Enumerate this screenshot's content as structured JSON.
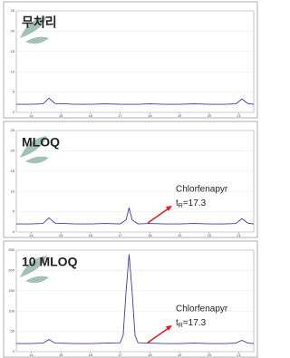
{
  "chart_data": [
    {
      "type": "line",
      "title": "무처리",
      "x": [
        13.5,
        14,
        14.4,
        14.6,
        14.8,
        15.5,
        16,
        16.5,
        17,
        17.2,
        17.3,
        17.4,
        17.6,
        18,
        18.5,
        19,
        19.5,
        20,
        20.5,
        20.9,
        21.1,
        21.3,
        21.5
      ],
      "series": [
        {
          "name": "Signal",
          "color": "#3b3bb0",
          "values": [
            2,
            2,
            2.1,
            3.5,
            2.2,
            2,
            2,
            2.1,
            2,
            2,
            2,
            2,
            2,
            2.1,
            2,
            2,
            2.1,
            2,
            2,
            2.1,
            3.3,
            2.2,
            2
          ]
        }
      ],
      "xlim": [
        13.5,
        21.5
      ],
      "xticks": [
        14,
        15,
        16,
        17,
        18,
        19,
        20,
        21
      ],
      "ylim": [
        0,
        25
      ],
      "yticks": [
        0,
        5,
        10,
        15,
        20,
        25
      ],
      "grid": true
    },
    {
      "type": "line",
      "title": "MLOQ",
      "x": [
        13.5,
        14,
        14.4,
        14.6,
        14.8,
        15.5,
        16,
        16.5,
        17,
        17.2,
        17.3,
        17.4,
        17.6,
        18,
        18.5,
        19,
        19.5,
        20,
        20.5,
        20.9,
        21.1,
        21.3,
        21.5
      ],
      "series": [
        {
          "name": "Signal",
          "color": "#3b3bb0",
          "values": [
            2,
            2,
            2.1,
            3.5,
            2.2,
            2,
            2,
            2.1,
            2,
            3,
            6,
            3,
            2,
            2.1,
            2,
            2,
            2.1,
            2,
            2,
            2.1,
            3.3,
            2.2,
            2
          ]
        }
      ],
      "xlim": [
        13.5,
        21.5
      ],
      "xticks": [
        14,
        15,
        16,
        17,
        18,
        19,
        20,
        21
      ],
      "ylim": [
        0,
        25
      ],
      "yticks": [
        0,
        5,
        10,
        15,
        20,
        25
      ],
      "grid": true,
      "annotation": "Chlorfenapyr",
      "retention": {
        "symbol": "t",
        "subscript": "R",
        "text": "=17.3"
      }
    },
    {
      "type": "line",
      "title": "10 MLOQ",
      "x": [
        13.5,
        14,
        14.4,
        14.6,
        14.8,
        15.5,
        16,
        16.5,
        17,
        17.1,
        17.2,
        17.3,
        17.4,
        17.5,
        17.6,
        18,
        18.5,
        19,
        19.5,
        20,
        20.5,
        20.9,
        21.1,
        21.3,
        21.5
      ],
      "series": [
        {
          "name": "Signal",
          "color": "#3b3bb0",
          "values": [
            20,
            20,
            21,
            30,
            21,
            20,
            20,
            21,
            22,
            40,
            150,
            240,
            150,
            40,
            22,
            21,
            20,
            20,
            21,
            20,
            20,
            21,
            28,
            21,
            20
          ]
        }
      ],
      "xlim": [
        13.5,
        21.5
      ],
      "xticks": [
        14,
        15,
        16,
        17,
        18,
        19,
        20,
        21
      ],
      "ylim": [
        0,
        250
      ],
      "yticks": [
        0,
        50,
        100,
        150,
        200,
        250
      ],
      "grid": true,
      "annotation": "Chlorfenapyr",
      "retention": {
        "symbol": "t",
        "subscript": "R",
        "text": "=17.3"
      }
    }
  ]
}
